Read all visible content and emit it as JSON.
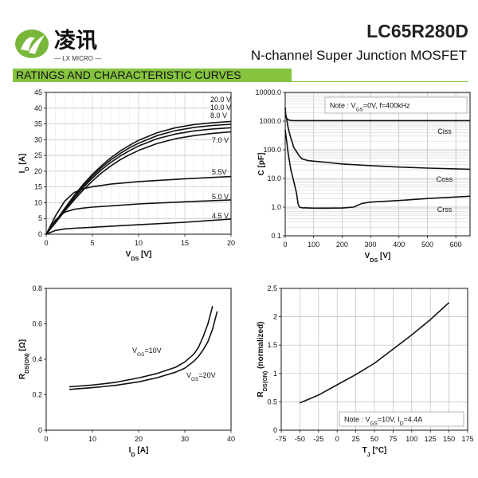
{
  "header": {
    "brand": "凌讯",
    "brand_sub": "— LX MICRO —",
    "part_number": "LC65R280D",
    "subtitle": "N-channel Super Junction MOSFET",
    "section": "RATINGS AND CHARACTERISTIC CURVES",
    "accent_color": "#86c440"
  },
  "chart_data": [
    {
      "type": "line",
      "xlabel": "V<sub>DS</sub> [V]",
      "ylabel": "I<sub>D</sub> [A]",
      "xlim": [
        0,
        20
      ],
      "ylim": [
        0,
        45
      ],
      "xticks": [
        0,
        5,
        10,
        15,
        20
      ],
      "yticks": [
        0,
        5,
        10,
        15,
        20,
        25,
        30,
        35,
        40,
        45
      ],
      "grid": true,
      "series": [
        {
          "name": "20.0 V",
          "x": [
            0,
            1,
            2,
            3,
            4,
            5,
            6,
            7,
            8,
            9,
            10,
            12,
            14,
            16,
            18,
            20
          ],
          "y": [
            0,
            4,
            8.2,
            12.2,
            15.8,
            19,
            21.8,
            24.3,
            26.4,
            28.2,
            29.8,
            32.2,
            33.8,
            34.8,
            35.4,
            35.8
          ]
        },
        {
          "name": "10.0 V",
          "x": [
            0,
            1,
            2,
            3,
            4,
            5,
            6,
            7,
            8,
            9,
            10,
            12,
            14,
            16,
            18,
            20
          ],
          "y": [
            0,
            3.9,
            8,
            11.8,
            15.3,
            18.4,
            21.2,
            23.6,
            25.6,
            27.4,
            28.9,
            31.3,
            32.9,
            33.9,
            34.5,
            34.9
          ]
        },
        {
          "name": "8.0 V",
          "x": [
            0,
            1,
            2,
            3,
            4,
            5,
            6,
            7,
            8,
            9,
            10,
            12,
            14,
            16,
            18,
            20
          ],
          "y": [
            0,
            3.8,
            7.7,
            11.4,
            14.8,
            17.8,
            20.5,
            22.8,
            24.8,
            26.5,
            28,
            30.3,
            31.8,
            32.8,
            33.4,
            33.8
          ]
        },
        {
          "name": "7.0 V",
          "x": [
            0,
            1,
            2,
            3,
            4,
            5,
            6,
            7,
            8,
            9,
            10,
            12,
            14,
            16,
            18,
            20
          ],
          "y": [
            0,
            3.6,
            7.3,
            10.8,
            14,
            16.9,
            19.5,
            21.7,
            23.6,
            25.2,
            26.6,
            28.8,
            30.3,
            31.3,
            32,
            32.5
          ]
        },
        {
          "name": "5.5V",
          "x": [
            0,
            1,
            2,
            3,
            4,
            5,
            7,
            10,
            15,
            20
          ],
          "y": [
            0,
            5.8,
            10.5,
            13.2,
            14.4,
            15.1,
            15.9,
            16.7,
            17.6,
            18.3
          ]
        },
        {
          "name": "5.0 V",
          "x": [
            0,
            1,
            2,
            3,
            4,
            5,
            7,
            10,
            15,
            20
          ],
          "y": [
            0,
            4.5,
            7,
            7.9,
            8.3,
            8.6,
            9,
            9.6,
            10.3,
            10.9
          ]
        },
        {
          "name": "4.5 V",
          "x": [
            0,
            1,
            2,
            3,
            5,
            8,
            10,
            15,
            20
          ],
          "y": [
            0,
            1.2,
            1.7,
            1.9,
            2.2,
            2.7,
            3,
            3.8,
            4.8
          ]
        }
      ]
    },
    {
      "type": "line",
      "xlabel": "V<sub>DS</sub> [V]",
      "ylabel": "C [pF]",
      "xlim": [
        0,
        650
      ],
      "ylim": [
        0.1,
        10000
      ],
      "yscale": "log",
      "xticks": [
        0,
        100,
        200,
        300,
        400,
        500,
        600
      ],
      "yticks": [
        "0.1",
        "1.0",
        "10.0",
        "100.0",
        "1000.0",
        "10000.0"
      ],
      "grid": true,
      "note": "Note : V<sub>GS</sub>=0V, f=400kHz",
      "series": [
        {
          "name": "Ciss",
          "x": [
            0,
            2,
            5,
            10,
            15,
            20,
            30,
            40,
            50,
            100,
            200,
            300,
            400,
            500,
            650
          ],
          "y": [
            3000,
            1600,
            1250,
            1120,
            1070,
            1050,
            1040,
            1040,
            1040,
            1040,
            1040,
            1040,
            1040,
            1040,
            1040
          ]
        },
        {
          "name": "Coss",
          "x": [
            0,
            5,
            10,
            20,
            25,
            30,
            40,
            50,
            60,
            80,
            100,
            150,
            200,
            300,
            400,
            500,
            650
          ],
          "y": [
            2000,
            1200,
            600,
            250,
            180,
            120,
            85,
            60,
            48,
            42,
            40,
            36,
            32,
            28,
            25,
            23,
            21
          ]
        },
        {
          "name": "Crss",
          "x": [
            0,
            5,
            10,
            20,
            30,
            40,
            45,
            50,
            60,
            100,
            150,
            200,
            240,
            270,
            300,
            400,
            500,
            650
          ],
          "y": [
            500,
            200,
            80,
            20,
            8,
            3,
            1.3,
            1,
            0.95,
            0.92,
            0.92,
            0.93,
            1,
            1.35,
            1.5,
            1.7,
            2,
            2.4
          ]
        }
      ]
    },
    {
      "type": "line",
      "xlabel": "I<sub>D</sub> [A]",
      "ylabel": "R<sub>DS(ON)</sub> [Ω]",
      "xlim": [
        0,
        40
      ],
      "ylim": [
        0,
        0.8
      ],
      "xticks": [
        0,
        10,
        20,
        30,
        40
      ],
      "yticks": [
        "0",
        "0.2",
        "0.4",
        "0.6",
        "0.8"
      ],
      "grid": false,
      "series": [
        {
          "name": "V<sub>GS</sub>=10V",
          "x": [
            5,
            10,
            15,
            20,
            24,
            28,
            30,
            32,
            33,
            34,
            35,
            36
          ],
          "y": [
            0.245,
            0.255,
            0.27,
            0.295,
            0.32,
            0.355,
            0.385,
            0.43,
            0.47,
            0.53,
            0.6,
            0.7
          ]
        },
        {
          "name": "V<sub>GS</sub>=20V",
          "x": [
            5,
            10,
            15,
            20,
            24,
            28,
            30,
            32,
            33,
            34,
            35,
            36,
            37
          ],
          "y": [
            0.23,
            0.24,
            0.253,
            0.273,
            0.296,
            0.327,
            0.35,
            0.39,
            0.418,
            0.455,
            0.5,
            0.57,
            0.67
          ]
        }
      ]
    },
    {
      "type": "line",
      "xlabel": "T<sub>J</sub> [°C]",
      "ylabel": "R<sub>DS(ON)</sub> (normalized)",
      "xlim": [
        -75,
        175
      ],
      "ylim": [
        0,
        2.5
      ],
      "xticks": [
        "-75",
        "-50",
        "-25",
        "0",
        "25",
        "50",
        "75",
        "100",
        "125",
        "150",
        "175"
      ],
      "yticks": [
        "0",
        "0.5",
        "1",
        "1.5",
        "2",
        "2.5"
      ],
      "grid": true,
      "note": "Note : V<sub>GS</sub>=10V, I<sub>D</sub>=4.4A",
      "series": [
        {
          "name": "",
          "x": [
            -50,
            -25,
            0,
            25,
            50,
            75,
            100,
            125,
            150
          ],
          "y": [
            0.48,
            0.62,
            0.8,
            0.98,
            1.18,
            1.43,
            1.68,
            1.95,
            2.25
          ]
        }
      ]
    }
  ]
}
